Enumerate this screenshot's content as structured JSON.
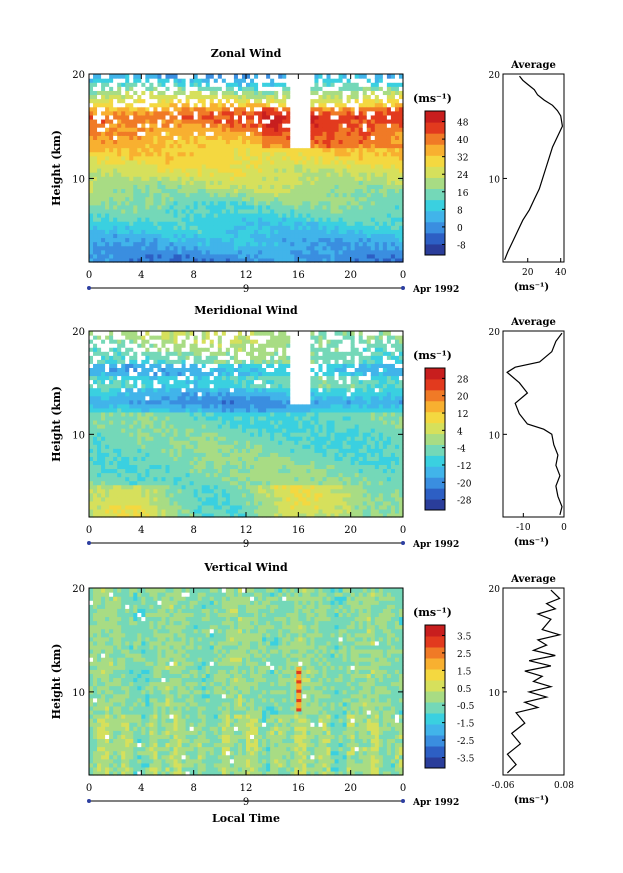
{
  "figure": {
    "xlabel": "Local Time",
    "colorbar_unit": "(ms⁻¹)",
    "date_day": "9",
    "date_label": "Apr 1992",
    "avg_title": "Average",
    "avg_unit": "(ms⁻¹)"
  },
  "colors": {
    "scale": [
      "#2a3d9a",
      "#2d5fc4",
      "#3a8ee0",
      "#41b4ea",
      "#3ad0e0",
      "#74d8b8",
      "#a8dc84",
      "#d6e05c",
      "#f4d840",
      "#f8b030",
      "#f07a26",
      "#e23a1e",
      "#c81e1e"
    ]
  },
  "chart_data": [
    {
      "type": "heatmap",
      "title": "Zonal Wind",
      "xlabel": "",
      "ylabel": "Height (km)",
      "xlim": [
        0,
        24
      ],
      "ylim": [
        2,
        20
      ],
      "xticks": [
        "0",
        "4",
        "8",
        "12",
        "16",
        "20",
        "0"
      ],
      "yticks": [
        "10",
        "20"
      ],
      "colorbar": {
        "min": -8,
        "max": 52,
        "ticks": [
          "-8",
          "0",
          "8",
          "16",
          "24",
          "32",
          "40",
          "48"
        ]
      },
      "profile": {
        "title": "Average",
        "xlim": [
          5,
          42
        ],
        "xticks": [
          "20",
          "40"
        ],
        "xlabel": "(ms⁻¹)",
        "points": [
          [
            6,
            2.2
          ],
          [
            8,
            3
          ],
          [
            11,
            4
          ],
          [
            14,
            5
          ],
          [
            17,
            6
          ],
          [
            21,
            7
          ],
          [
            24,
            8
          ],
          [
            27,
            9
          ],
          [
            29,
            10
          ],
          [
            31,
            11
          ],
          [
            33,
            12
          ],
          [
            35,
            13
          ],
          [
            38,
            14
          ],
          [
            41,
            15
          ],
          [
            40,
            16
          ],
          [
            38,
            16.5
          ],
          [
            35,
            17
          ],
          [
            30,
            17.5
          ],
          [
            26,
            18
          ],
          [
            24,
            18.5
          ],
          [
            20,
            19
          ],
          [
            17,
            19.4
          ],
          [
            15,
            19.8
          ]
        ]
      }
    },
    {
      "type": "heatmap",
      "title": "Meridional Wind",
      "xlabel": "",
      "ylabel": "Height (km)",
      "xlim": [
        0,
        24
      ],
      "ylim": [
        2,
        20
      ],
      "xticks": [
        "0",
        "4",
        "8",
        "12",
        "16",
        "20",
        "0"
      ],
      "yticks": [
        "10",
        "20"
      ],
      "colorbar": {
        "min": -28,
        "max": 28,
        "ticks": [
          "-28",
          "-20",
          "-12",
          "-4",
          "4",
          "12",
          "20",
          "28"
        ]
      },
      "profile": {
        "title": "Average",
        "xlim": [
          -15,
          0
        ],
        "xticks": [
          "-10",
          "0"
        ],
        "xlabel": "(ms⁻¹)",
        "points": [
          [
            -1,
            2.2
          ],
          [
            -0.5,
            3
          ],
          [
            -1.5,
            4
          ],
          [
            -2,
            5
          ],
          [
            -1,
            6
          ],
          [
            -2,
            7
          ],
          [
            -1.5,
            8
          ],
          [
            -2.5,
            9
          ],
          [
            -3,
            10
          ],
          [
            -5,
            10.5
          ],
          [
            -9,
            11
          ],
          [
            -11,
            12
          ],
          [
            -12,
            13
          ],
          [
            -9,
            14
          ],
          [
            -11,
            15
          ],
          [
            -14,
            16
          ],
          [
            -12,
            16.5
          ],
          [
            -6,
            17
          ],
          [
            -3,
            18
          ],
          [
            -2,
            19
          ],
          [
            -0.5,
            19.8
          ]
        ]
      }
    },
    {
      "type": "heatmap",
      "title": "Vertical Wind",
      "xlabel": "Local Time",
      "ylabel": "Height (km)",
      "xlim": [
        0,
        24
      ],
      "ylim": [
        2,
        20
      ],
      "xticks": [
        "0",
        "4",
        "8",
        "12",
        "16",
        "20",
        "0"
      ],
      "yticks": [
        "10",
        "20"
      ],
      "colorbar": {
        "min": -3.5,
        "max": 4.0,
        "ticks": [
          "-3.5",
          "-2.5",
          "-1.5",
          "-0.5",
          "0.5",
          "1.5",
          "2.5",
          "3.5"
        ]
      },
      "profile": {
        "title": "Average",
        "xlim": [
          -0.06,
          0.08
        ],
        "xticks": [
          "-0.06",
          "0.08"
        ],
        "xlabel": "(ms⁻¹)",
        "points": [
          [
            -0.05,
            2.2
          ],
          [
            -0.03,
            3
          ],
          [
            -0.05,
            4
          ],
          [
            -0.02,
            5
          ],
          [
            -0.04,
            6
          ],
          [
            -0.01,
            7
          ],
          [
            -0.03,
            8
          ],
          [
            0.02,
            8.5
          ],
          [
            -0.01,
            9
          ],
          [
            0.04,
            9.5
          ],
          [
            0.0,
            10
          ],
          [
            0.05,
            10.5
          ],
          [
            0.01,
            11
          ],
          [
            0.03,
            11.5
          ],
          [
            -0.01,
            12
          ],
          [
            0.05,
            12.5
          ],
          [
            0.0,
            13
          ],
          [
            0.06,
            13.5
          ],
          [
            0.01,
            14
          ],
          [
            0.04,
            14.5
          ],
          [
            0.02,
            15
          ],
          [
            0.07,
            15.5
          ],
          [
            0.03,
            16
          ],
          [
            0.05,
            17
          ],
          [
            0.02,
            17.5
          ],
          [
            0.06,
            18
          ],
          [
            0.04,
            18.5
          ],
          [
            0.07,
            19
          ],
          [
            0.05,
            19.8
          ]
        ]
      }
    }
  ]
}
